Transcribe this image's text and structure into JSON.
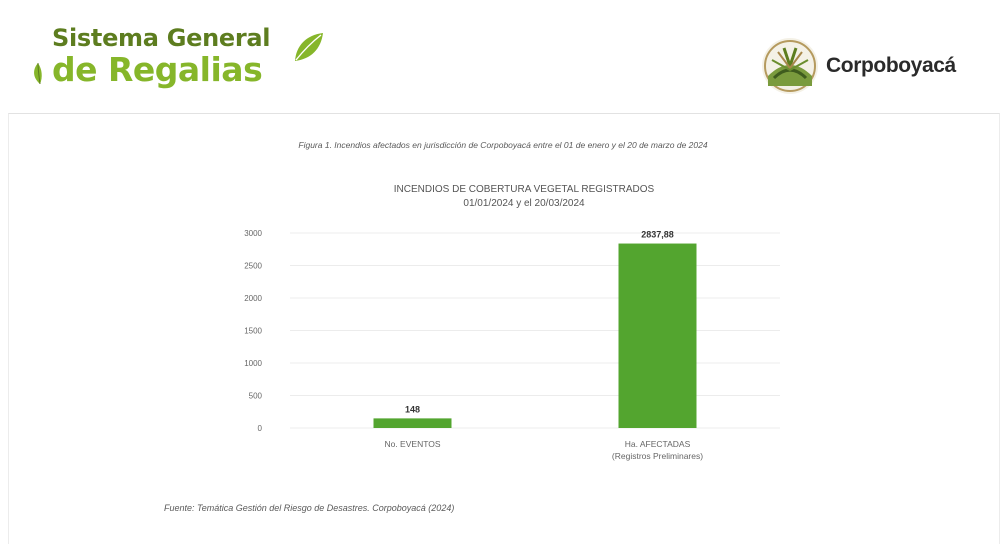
{
  "header": {
    "sgr_logo": {
      "line1": "Sistema General",
      "line2": "de Regalias"
    },
    "corpo_logo": {
      "name": "Corpoboyacá"
    }
  },
  "figure": {
    "caption": "Figura 1. Incendios afectados en jurisdicción de Corpoboyacá entre el 01 de enero y el 20 de marzo de 2024",
    "source": "Fuente: Temática Gestión del Riesgo de Desastres. Corpoboyacá (2024)"
  },
  "colors": {
    "bar": "#53a52f",
    "sgr_dark_green": "#5d7d1f",
    "sgr_light_green": "#86b62a",
    "grid": "#ececec",
    "axis_text": "#666666"
  },
  "chart_data": {
    "type": "bar",
    "title": "INCENDIOS DE COBERTURA VEGETAL REGISTRADOS",
    "subtitle": "01/01/2024 y el 20/03/2024",
    "categories": [
      "No. EVENTOS",
      "Ha. AFECTADAS (Registros Preliminares)"
    ],
    "category_lines": [
      [
        "No. EVENTOS"
      ],
      [
        "Ha. AFECTADAS",
        "(Registros Preliminares)"
      ]
    ],
    "values": [
      148,
      2837.88
    ],
    "value_labels": [
      "148",
      "2837,88"
    ],
    "ylim": [
      0,
      3000
    ],
    "yticks": [
      0,
      500,
      1000,
      1500,
      2000,
      2500,
      3000
    ],
    "grid": true,
    "legend": "none"
  }
}
